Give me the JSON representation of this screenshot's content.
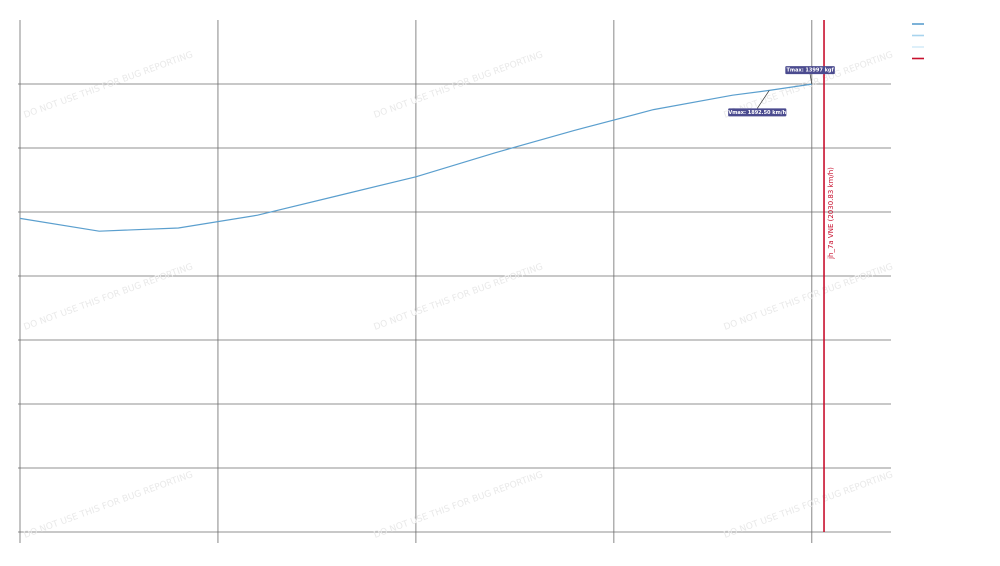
{
  "chart_data": {
    "type": "line",
    "title": "",
    "xlabel": "",
    "ylabel": "",
    "xlim": [
      0,
      2200
    ],
    "ylim": [
      0,
      16000
    ],
    "x_gridlines": [
      0,
      500,
      1000,
      1500,
      2000
    ],
    "y_gridlines": [
      0,
      2000,
      4000,
      6000,
      8000,
      10000,
      12000,
      14000
    ],
    "grid": true,
    "series": [
      {
        "color": "#5b9fce",
        "points": [
          [
            0,
            9800
          ],
          [
            200,
            9400
          ],
          [
            400,
            9500
          ],
          [
            600,
            9900
          ],
          [
            800,
            10500
          ],
          [
            1000,
            11100
          ],
          [
            1200,
            11850
          ],
          [
            1400,
            12550
          ],
          [
            1600,
            13200
          ],
          [
            1800,
            13650
          ],
          [
            1892.5,
            13800
          ],
          [
            2000,
            13997
          ]
        ]
      }
    ],
    "limit_line": {
      "label": "jh_7a VNE (2030.83 km/h)",
      "x": 2030.83,
      "color": "#c8102e"
    },
    "annotations": [
      {
        "text": "Tmax: 13997 kgf",
        "x": 2000,
        "y": 13997
      },
      {
        "text": "Vmax: 1892.50 km/h",
        "x": 1892.5,
        "y": 13800
      }
    ],
    "legend": {
      "placement": "top-right",
      "swatches": [
        "#5b9fce",
        "#a8d4ee",
        "#d6ecf8",
        "#c8102e"
      ]
    },
    "watermark_text": "DO NOT USE THIS FOR BUG REPORTING"
  }
}
